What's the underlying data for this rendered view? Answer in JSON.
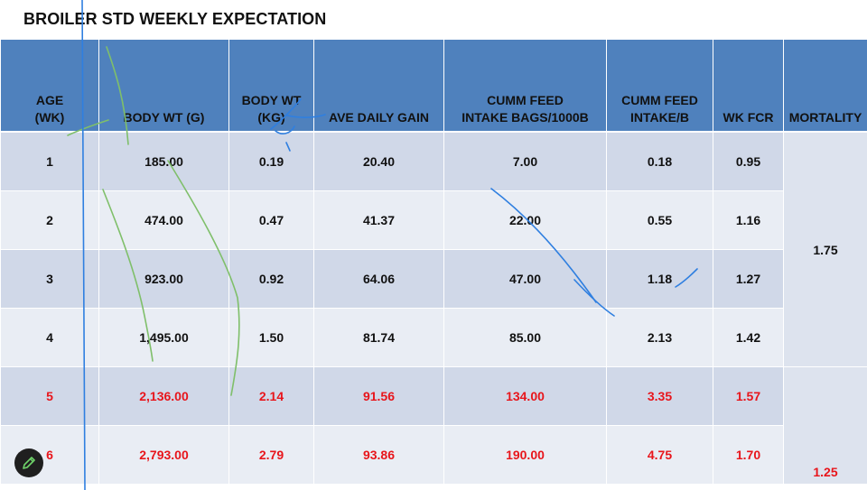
{
  "title": "BROILER STD WEEKLY EXPECTATION",
  "headers": [
    [
      "AGE",
      "(WK)"
    ],
    [
      "BODY WT (G)"
    ],
    [
      "BODY WT",
      "(KG)"
    ],
    [
      "AVE DAILY GAIN"
    ],
    [
      "CUMM FEED",
      "INTAKE BAGS/1000B"
    ],
    [
      "CUMM FEED",
      "INTAKE/B"
    ],
    [
      "WK FCR"
    ],
    [
      "MORTALITY"
    ]
  ],
  "rows": [
    {
      "age": "1",
      "bw_g": "185.00",
      "bw_kg": "0.19",
      "adg": "20.40",
      "feed_bags": "7.00",
      "feed_b": "0.18",
      "fcr": "0.95"
    },
    {
      "age": "2",
      "bw_g": "474.00",
      "bw_kg": "0.47",
      "adg": "41.37",
      "feed_bags": "22.00",
      "feed_b": "0.55",
      "fcr": "1.16"
    },
    {
      "age": "3",
      "bw_g": "923.00",
      "bw_kg": "0.92",
      "adg": "64.06",
      "feed_bags": "47.00",
      "feed_b": "1.18",
      "fcr": "1.27"
    },
    {
      "age": "4",
      "bw_g": "1,495.00",
      "bw_kg": "1.50",
      "adg": "81.74",
      "feed_bags": "85.00",
      "feed_b": "2.13",
      "fcr": "1.42"
    },
    {
      "age": "5",
      "bw_g": "2,136.00",
      "bw_kg": "2.14",
      "adg": "91.56",
      "feed_bags": "134.00",
      "feed_b": "3.35",
      "fcr": "1.57"
    },
    {
      "age": "6",
      "bw_g": "2,793.00",
      "bw_kg": "2.79",
      "adg": "93.86",
      "feed_bags": "190.00",
      "feed_b": "4.75",
      "fcr": "1.70"
    }
  ],
  "mortality": {
    "weeks_1_4": "1.75",
    "weeks_5_6": "1.25"
  },
  "colors": {
    "header_bg": "#4f81bd",
    "row_dark": "#d0d8e8",
    "row_light": "#e9edf4",
    "highlight_text": "#e8151b",
    "ink_green": "#7fbf6a",
    "ink_blue": "#2f7fe0"
  },
  "toolbar": {
    "pen_icon": "pencil-icon"
  }
}
